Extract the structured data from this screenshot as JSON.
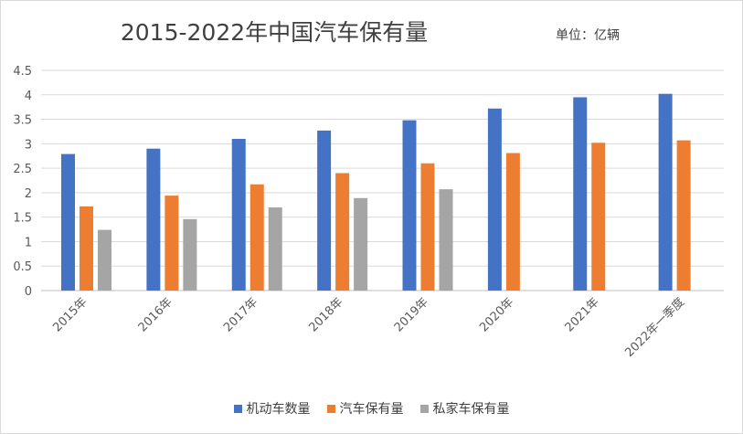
{
  "chart_data": {
    "type": "bar",
    "title": "2015-2022年中国汽车保有量",
    "unit": "单位：亿辆",
    "categories": [
      "2015年",
      "2016年",
      "2017年",
      "2018年",
      "2019年",
      "2020年",
      "2021年",
      "2022年一季度"
    ],
    "yticks": [
      "0",
      "0.5",
      "1",
      "1.5",
      "2",
      "2.5",
      "3",
      "3.5",
      "4",
      "4.5"
    ],
    "ylim": [
      0,
      4.5
    ],
    "grid": true,
    "legend": "bottom",
    "series": [
      {
        "name": "机动车数量",
        "color": "#4472c4",
        "values": [
          2.79,
          2.9,
          3.1,
          3.27,
          3.48,
          3.72,
          3.95,
          4.02
        ]
      },
      {
        "name": "汽车保有量",
        "color": "#ed7d31",
        "values": [
          1.72,
          1.94,
          2.17,
          2.4,
          2.6,
          2.81,
          3.02,
          3.07
        ]
      },
      {
        "name": "私家车保有量",
        "color": "#a5a5a5",
        "values": [
          1.24,
          1.46,
          1.7,
          1.89,
          2.07,
          null,
          null,
          null
        ]
      }
    ]
  }
}
